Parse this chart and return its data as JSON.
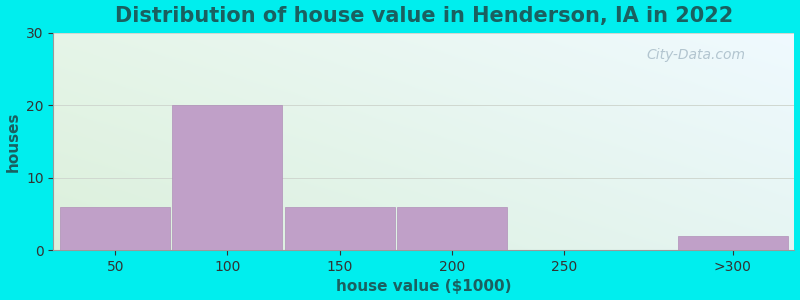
{
  "title": "Distribution of house value in Henderson, IA in 2022",
  "xlabel": "house value ($1000)",
  "ylabel": "houses",
  "bar_labels": [
    "50",
    "100",
    "150",
    "200",
    "250",
    ">300"
  ],
  "bar_heights": [
    6,
    20,
    6,
    6,
    0,
    2
  ],
  "bar_color": "#C0A0C8",
  "bar_edgecolor": "#B090B8",
  "ylim": [
    0,
    30
  ],
  "yticks": [
    0,
    10,
    20,
    30
  ],
  "bg_outer": "#00EEEE",
  "title_color": "#1A6060",
  "label_color": "#1A6060",
  "tick_color": "#333333",
  "watermark": "City-Data.com",
  "title_fontsize": 15,
  "label_fontsize": 11,
  "tick_fontsize": 10,
  "grid_color": "#D0D8D0",
  "bar_positions": [
    0,
    1,
    2,
    3,
    4,
    5.5
  ],
  "bar_width": 0.98,
  "xlim": [
    -0.55,
    6.05
  ]
}
